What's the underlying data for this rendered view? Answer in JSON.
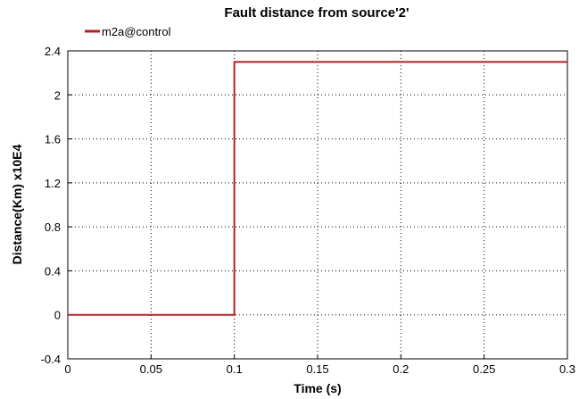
{
  "chart_data": {
    "type": "line",
    "title": "Fault distance from source'2'",
    "xlabel": "Time (s)",
    "ylabel": "Distance(Km) x10E4",
    "xlim": [
      0,
      0.3
    ],
    "ylim": [
      -0.4,
      2.4
    ],
    "xticks": [
      0,
      0.05,
      0.1,
      0.15,
      0.2,
      0.25,
      0.3
    ],
    "xtick_labels": [
      "0",
      "0.05",
      "0.1",
      "0.15",
      "0.2",
      "0.25",
      "0.3"
    ],
    "yticks": [
      -0.4,
      0,
      0.4,
      0.8,
      1.2,
      1.6,
      2,
      2.4
    ],
    "ytick_labels": [
      "-0.4",
      "0",
      "0.4",
      "0.8",
      "1.2",
      "1.6",
      "2",
      "2.4"
    ],
    "grid": true,
    "legend_position": "top-left",
    "series": [
      {
        "name": "m2a@control",
        "color": "#b22222",
        "x": [
          0,
          0.1,
          0.1,
          0.3
        ],
        "y": [
          0,
          0,
          2.3,
          2.3
        ]
      }
    ]
  }
}
